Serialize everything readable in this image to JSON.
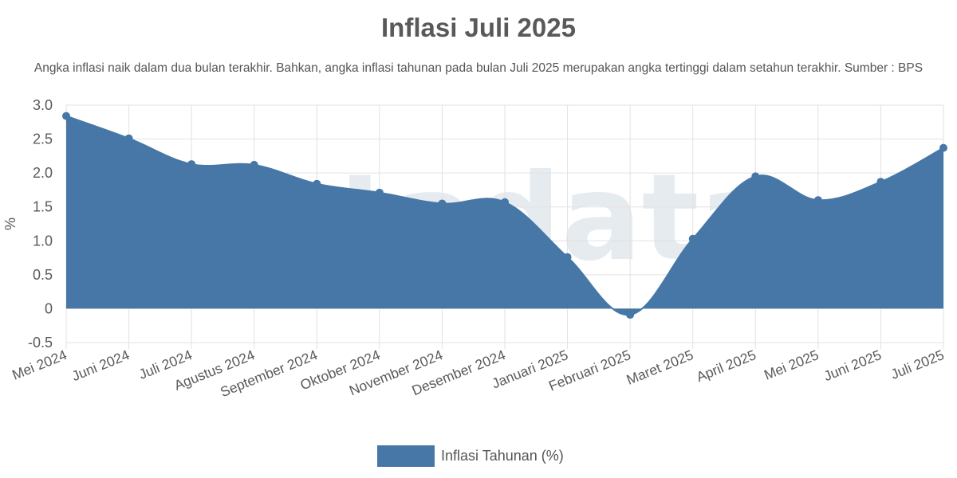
{
  "colors": {
    "series_fill": "#4677a7",
    "grid": "#e2e2e2",
    "axis_text": "#5a5a5a",
    "title": "#595959",
    "watermark": "#c9d4dc",
    "watermark_accent_yellow": "#f7e29a",
    "watermark_accent_red": "#f2b5b5"
  },
  "watermark_text": "katadata",
  "chart_data": {
    "type": "area",
    "title": "Inflasi Juli 2025",
    "subtitle": "Angka inflasi naik dalam dua bulan terakhir. Bahkan, angka inflasi tahunan pada bulan Juli 2025 merupakan angka tertinggi dalam setahun terakhir. Sumber : BPS",
    "xlabel": "",
    "ylabel": "%",
    "ylim": [
      -0.5,
      3.0
    ],
    "yticks": [
      3.0,
      2.5,
      2.0,
      1.5,
      1.0,
      0.5,
      0,
      -0.5
    ],
    "ytick_labels": [
      "3.0",
      "2.5",
      "2.0",
      "1.5",
      "1.0",
      "0.5",
      "0",
      "-0.5"
    ],
    "grid": true,
    "legend_position": "bottom",
    "categories": [
      "Mei 2024",
      "Juni 2024",
      "Juli 2024",
      "Agustus 2024",
      "September 2024",
      "Oktober 2024",
      "November 2024",
      "Desember 2024",
      "Januari 2025",
      "Februari 2025",
      "Maret 2025",
      "April 2025",
      "Mei 2025",
      "Juni 2025",
      "Juli 2025"
    ],
    "series": [
      {
        "name": "Inflasi Tahunan (%)",
        "values": [
          2.84,
          2.51,
          2.13,
          2.12,
          1.84,
          1.71,
          1.55,
          1.57,
          0.76,
          -0.09,
          1.03,
          1.95,
          1.6,
          1.87,
          2.37
        ]
      }
    ]
  }
}
